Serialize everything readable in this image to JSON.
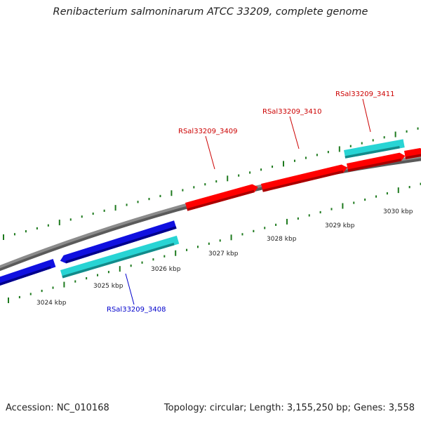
{
  "header": {
    "title": "Renibacterium salmoninarum ATCC 33209, complete genome"
  },
  "footer": {
    "accession": "Accession: NC_010168",
    "summary": "Topology: circular; Length: 3,155,250 bp; Genes: 3,558"
  },
  "colors": {
    "backbone": "#8c8c8c",
    "cds_forward": "#ff0000",
    "cds_reverse": "#1010e0",
    "orf_track": "#28d4d4",
    "tick_major": "#1e7a1e",
    "tick_minor": "#1e7a1e",
    "label_forward": "#cc0000",
    "label_reverse": "#0000cc"
  },
  "ticks": {
    "inner_labels": [
      "3024 kbp",
      "3025 kbp",
      "3026 kbp",
      "3027 kbp",
      "3028 kbp",
      "3029 kbp",
      "3030 kbp"
    ]
  },
  "genes": [
    {
      "id": "RSal33209_3408",
      "strand": "reverse"
    },
    {
      "id": "RSal33209_3409",
      "strand": "forward"
    },
    {
      "id": "RSal33209_3410",
      "strand": "forward"
    },
    {
      "id": "RSal33209_3411",
      "strand": "forward"
    }
  ]
}
